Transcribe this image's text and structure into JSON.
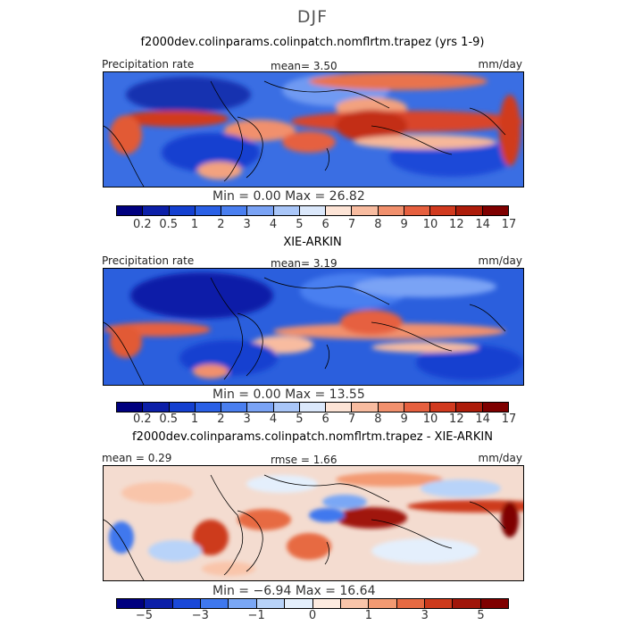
{
  "season": "DJF",
  "panels": [
    {
      "title": "f2000dev.colinparams.colinpatch.nomflrtm.trapez (yrs 1-9)",
      "left_label": "Precipitation rate",
      "center_label": "mean=    3.50",
      "right_label": "mm/day",
      "minmax": "Min  =    0.00  Max  =   26.82",
      "ticks": [
        "0.2",
        "0.5",
        "1",
        "2",
        "3",
        "4",
        "5",
        "6",
        "7",
        "8",
        "9",
        "10",
        "12",
        "14",
        "17"
      ]
    },
    {
      "title": "XIE-ARKIN",
      "left_label": "Precipitation rate",
      "center_label": "mean=    3.19",
      "right_label": "mm/day",
      "minmax": "Min  =    0.00  Max  =   13.55",
      "ticks": [
        "0.2",
        "0.5",
        "1",
        "2",
        "3",
        "4",
        "5",
        "6",
        "7",
        "8",
        "9",
        "10",
        "12",
        "14",
        "17"
      ]
    },
    {
      "title": "f2000dev.colinparams.colinpatch.nomflrtm.trapez - XIE-ARKIN",
      "left_label": "mean =   0.29",
      "center_label": "rmse =    1.66",
      "right_label": "mm/day",
      "minmax": "Min  =   −6.94  Max  =   16.64",
      "ticks": [
        "−5",
        "−3",
        "−1",
        "0",
        "1",
        "3",
        "5"
      ]
    }
  ],
  "colors": {
    "precip_scale": [
      "#00007f",
      "#0c1fa8",
      "#1440d0",
      "#2a60e6",
      "#4a7ff0",
      "#7aa3f5",
      "#a9c6f8",
      "#dbe8fb",
      "#fde4d6",
      "#f8bca0",
      "#f1906d",
      "#e6603f",
      "#d13a1f",
      "#ad1c0a",
      "#7f0000"
    ],
    "diff_scale": [
      "#00007f",
      "#0c1fa8",
      "#1a48d8",
      "#3f78ee",
      "#7aa7f5",
      "#b8d3f9",
      "#e4effc",
      "#fdebe0",
      "#f9c5aa",
      "#f39a72",
      "#e76a42",
      "#cd3a1c",
      "#a0160a",
      "#7f0000"
    ]
  }
}
